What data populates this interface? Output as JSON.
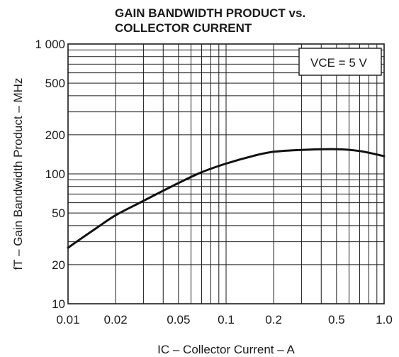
{
  "chart_data": {
    "type": "line",
    "title": [
      "GAIN BANDWIDTH PRODUCT vs.",
      "COLLECTOR CURRENT"
    ],
    "xlabel": "IC – Collector Current – A",
    "ylabel": "fT – Gain Bandwidth Product – MHz",
    "x_scale": "log",
    "y_scale": "log",
    "xlim": [
      0.01,
      1.0
    ],
    "ylim": [
      10,
      1000
    ],
    "x_ticks": [
      {
        "value": 0.01,
        "label": "0.01"
      },
      {
        "value": 0.02,
        "label": "0.02"
      },
      {
        "value": 0.05,
        "label": "0.05"
      },
      {
        "value": 0.1,
        "label": "0.1"
      },
      {
        "value": 0.2,
        "label": "0.2"
      },
      {
        "value": 0.5,
        "label": "0.5"
      },
      {
        "value": 1.0,
        "label": "1.0"
      }
    ],
    "y_ticks": [
      {
        "value": 10,
        "label": "10"
      },
      {
        "value": 20,
        "label": "20"
      },
      {
        "value": 50,
        "label": "50"
      },
      {
        "value": 100,
        "label": "100"
      },
      {
        "value": 200,
        "label": "200"
      },
      {
        "value": 500,
        "label": "500"
      },
      {
        "value": 1000,
        "label": "1 000"
      }
    ],
    "grid": true,
    "annotation": "VCE = 5 V",
    "series": [
      {
        "x": [
          0.01,
          0.015,
          0.02,
          0.03,
          0.05,
          0.07,
          0.1,
          0.15,
          0.2,
          0.3,
          0.5,
          0.7,
          1.0
        ],
        "y": [
          27,
          38,
          48,
          62,
          85,
          103,
          120,
          138,
          148,
          153,
          155,
          150,
          137
        ]
      }
    ]
  }
}
